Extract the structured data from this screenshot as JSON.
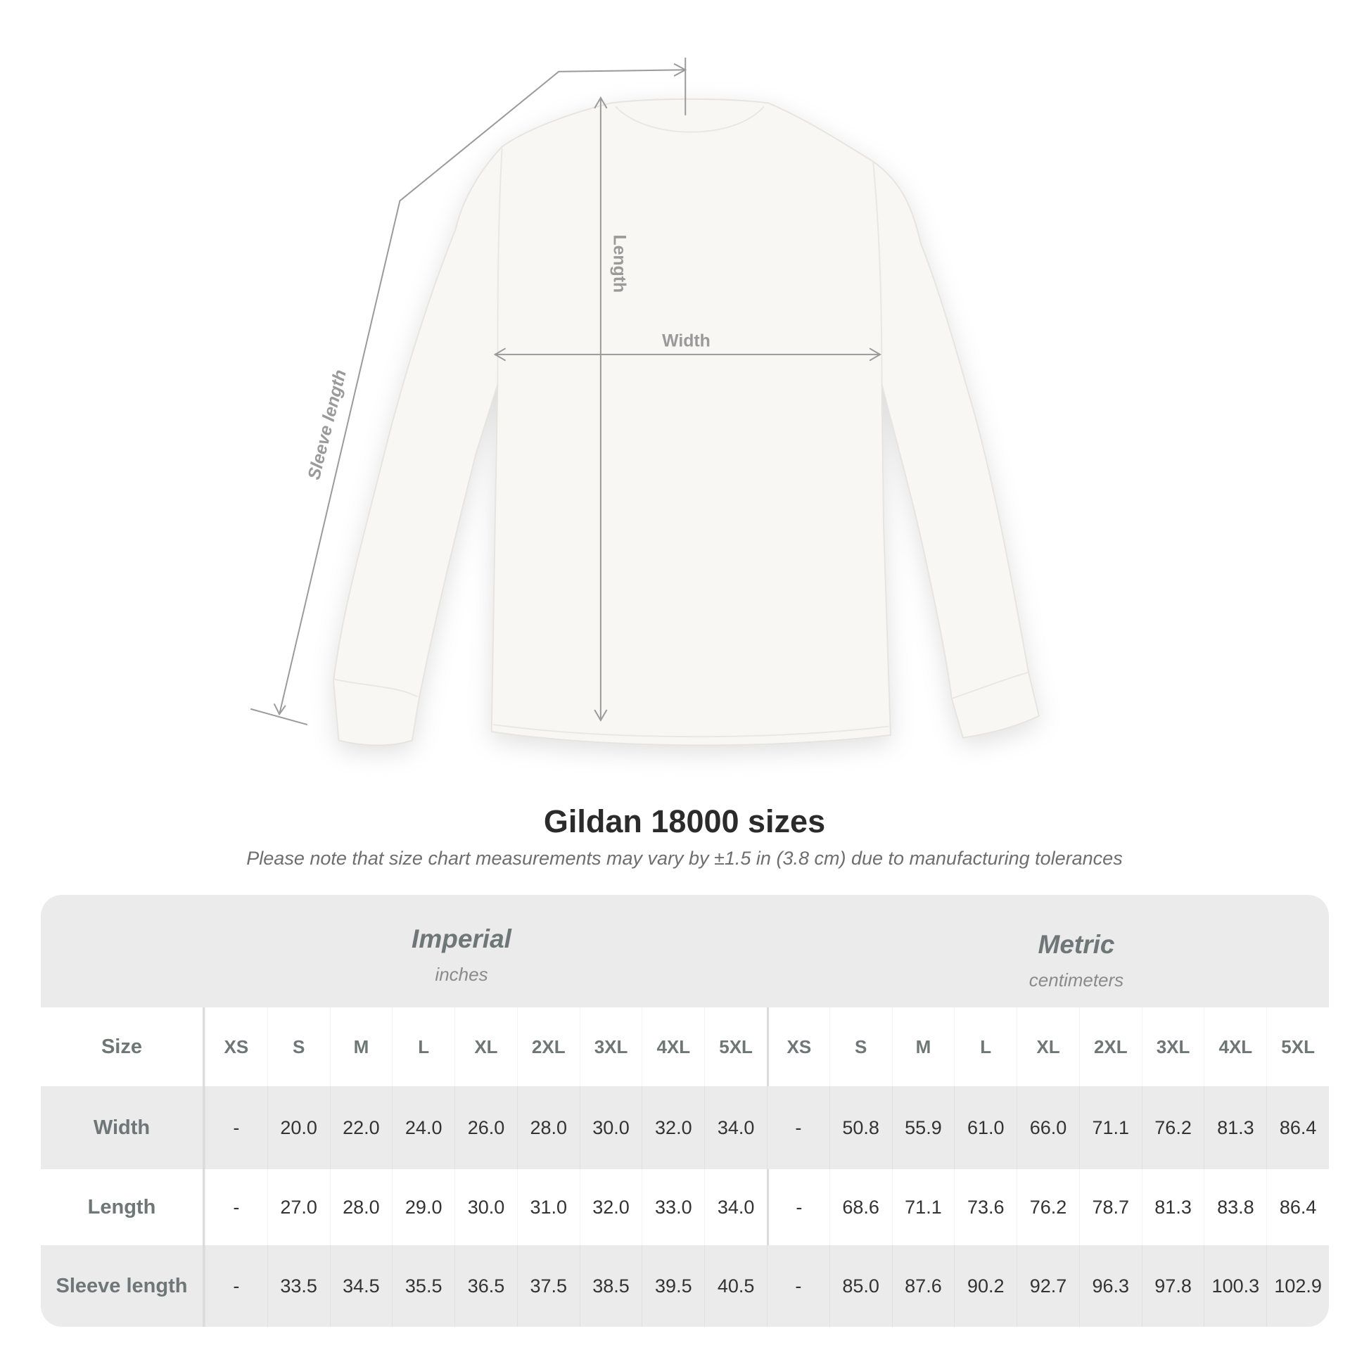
{
  "diagram": {
    "labels": {
      "length": "Length",
      "width": "Width",
      "sleeve": "Sleeve length"
    },
    "garment_color": "#f8f7f3",
    "line_color": "#9a9a9a"
  },
  "title": "Gildan 18000 sizes",
  "note": "Please note that size chart measurements may vary by ±1.5 in (3.8 cm) due to manufacturing tolerances",
  "table": {
    "imperial": {
      "name": "Imperial",
      "unit": "inches"
    },
    "metric": {
      "name": "Metric",
      "unit": "centimeters"
    },
    "size_label": "Size",
    "sizes": [
      "XS",
      "S",
      "M",
      "L",
      "XL",
      "2XL",
      "3XL",
      "4XL",
      "5XL"
    ],
    "rows": [
      {
        "label": "Width",
        "imperial": [
          "-",
          "20.0",
          "22.0",
          "24.0",
          "26.0",
          "28.0",
          "30.0",
          "32.0",
          "34.0"
        ],
        "metric": [
          "-",
          "50.8",
          "55.9",
          "61.0",
          "66.0",
          "71.1",
          "76.2",
          "81.3",
          "86.4"
        ]
      },
      {
        "label": "Length",
        "imperial": [
          "-",
          "27.0",
          "28.0",
          "29.0",
          "30.0",
          "31.0",
          "32.0",
          "33.0",
          "34.0"
        ],
        "metric": [
          "-",
          "68.6",
          "71.1",
          "73.6",
          "76.2",
          "78.7",
          "81.3",
          "83.8",
          "86.4"
        ]
      },
      {
        "label": "Sleeve length",
        "imperial": [
          "-",
          "33.5",
          "34.5",
          "35.5",
          "36.5",
          "37.5",
          "38.5",
          "39.5",
          "40.5"
        ],
        "metric": [
          "-",
          "85.0",
          "87.6",
          "90.2",
          "92.7",
          "96.3",
          "97.8",
          "100.3",
          "102.9"
        ]
      }
    ]
  }
}
